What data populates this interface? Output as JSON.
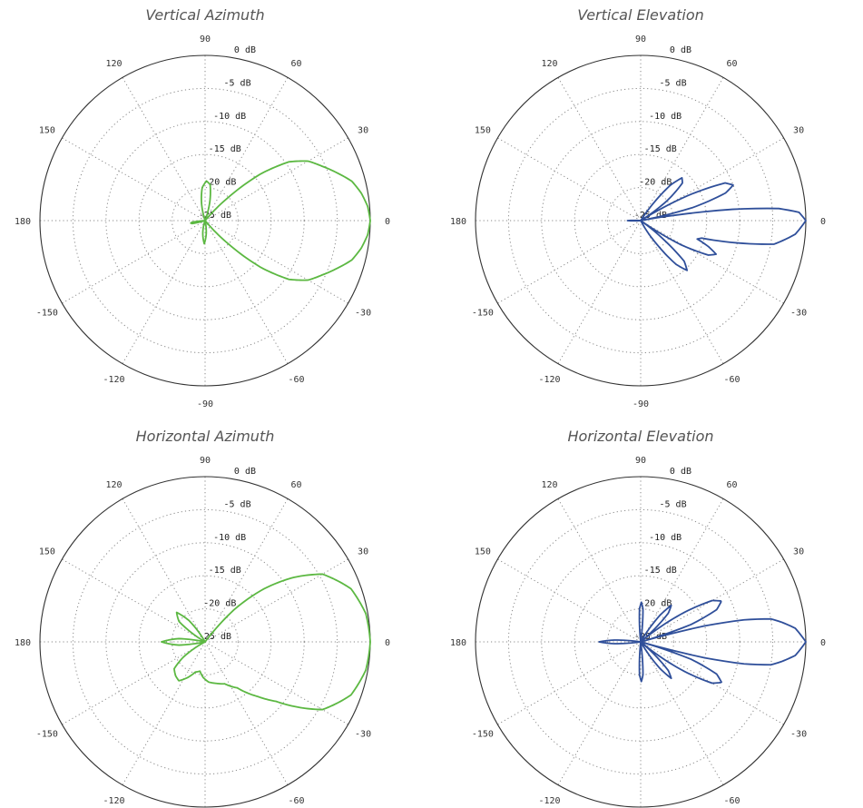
{
  "chart_data": [
    {
      "type": "polar-line",
      "title": "Vertical Azimuth",
      "angle_ticks": [
        "0",
        "30",
        "60",
        "90",
        "120",
        "150",
        "180",
        "-150",
        "-120",
        "-90",
        "-60",
        "-30"
      ],
      "radial_ticks": [
        "0 dB",
        "-5 dB",
        "-10 dB",
        "-15 dB",
        "-20 dB",
        "-25 dB"
      ],
      "rlim_db": [
        -25,
        0
      ],
      "grid": true,
      "color": "#5cb842",
      "points": [
        [
          -180,
          -25
        ],
        [
          -176,
          -25
        ],
        [
          -173,
          -23
        ],
        [
          -170,
          -22.8
        ],
        [
          -167,
          -23
        ],
        [
          -164,
          -25
        ],
        [
          -110,
          -25
        ],
        [
          -100,
          -23
        ],
        [
          -92,
          -21.5
        ],
        [
          -85,
          -23
        ],
        [
          -78,
          -25
        ],
        [
          -50,
          -25
        ],
        [
          -45,
          -20
        ],
        [
          -40,
          -14
        ],
        [
          -35,
          -9.5
        ],
        [
          -30,
          -7
        ],
        [
          -25,
          -5.5
        ],
        [
          -20,
          -3.8
        ],
        [
          -15,
          -2
        ],
        [
          -10,
          -1
        ],
        [
          -5,
          -0.3
        ],
        [
          0,
          0
        ],
        [
          5,
          -0.3
        ],
        [
          10,
          -1
        ],
        [
          15,
          -2
        ],
        [
          20,
          -3.8
        ],
        [
          25,
          -5.5
        ],
        [
          30,
          -7
        ],
        [
          35,
          -9.5
        ],
        [
          40,
          -14
        ],
        [
          45,
          -20
        ],
        [
          50,
          -25
        ],
        [
          70,
          -25
        ],
        [
          76,
          -22
        ],
        [
          82,
          -19.5
        ],
        [
          88,
          -19
        ],
        [
          95,
          -20
        ],
        [
          102,
          -22.5
        ],
        [
          108,
          -25
        ],
        [
          180,
          -25
        ]
      ]
    },
    {
      "type": "polar-line",
      "title": "Vertical Elevation",
      "angle_ticks": [
        "0",
        "30",
        "60",
        "90",
        "120",
        "150",
        "180",
        "-150",
        "-120",
        "-90",
        "-60",
        "-30"
      ],
      "radial_ticks": [
        "0 dB",
        "-5 dB",
        "-10 dB",
        "-15 dB",
        "-20 dB",
        "-25 dB"
      ],
      "rlim_db": [
        -25,
        0
      ],
      "grid": true,
      "color": "#2f4f9a",
      "points": [
        [
          -180,
          -23
        ],
        [
          -176,
          -25
        ],
        [
          -62,
          -25
        ],
        [
          -56,
          -21
        ],
        [
          -51,
          -16.5
        ],
        [
          -47,
          -14.7
        ],
        [
          -43,
          -16
        ],
        [
          -39,
          -21
        ],
        [
          -35,
          -25
        ],
        [
          -31,
          -18
        ],
        [
          -27,
          -13.5
        ],
        [
          -24,
          -12.5
        ],
        [
          -21,
          -14
        ],
        [
          -18,
          -16
        ],
        [
          -16,
          -15.4
        ],
        [
          -13,
          -10
        ],
        [
          -10,
          -4.5
        ],
        [
          -5,
          -1.5
        ],
        [
          0,
          0
        ],
        [
          3,
          -1
        ],
        [
          5,
          -4
        ],
        [
          7,
          -11
        ],
        [
          9,
          -20
        ],
        [
          11,
          -25
        ],
        [
          14,
          -17
        ],
        [
          18,
          -11.5
        ],
        [
          21,
          -10
        ],
        [
          24,
          -11
        ],
        [
          28,
          -17
        ],
        [
          32,
          -25
        ],
        [
          37,
          -20
        ],
        [
          42,
          -16.5
        ],
        [
          46,
          -16
        ],
        [
          50,
          -18
        ],
        [
          55,
          -23
        ],
        [
          58,
          -25
        ],
        [
          176,
          -25
        ],
        [
          180,
          -23
        ]
      ]
    },
    {
      "type": "polar-line",
      "title": "Horizontal Azimuth",
      "angle_ticks": [
        "0",
        "30",
        "60",
        "90",
        "120",
        "150",
        "180",
        "-150",
        "-120",
        "-90",
        "-60",
        "-30"
      ],
      "radial_ticks": [
        "0 dB",
        "-5 dB",
        "-10 dB",
        "-15 dB",
        "-20 dB",
        "-25 dB"
      ],
      "rlim_db": [
        -25,
        0
      ],
      "grid": true,
      "color": "#5cb842",
      "points": [
        [
          -180,
          -18.4
        ],
        [
          -173,
          -21
        ],
        [
          -168,
          -25
        ],
        [
          -152,
          -25
        ],
        [
          -145,
          -21
        ],
        [
          -139,
          -18.8
        ],
        [
          -131,
          -18.2
        ],
        [
          -124,
          -17.9
        ],
        [
          -116,
          -19
        ],
        [
          -108,
          -20.2
        ],
        [
          -100,
          -20.5
        ],
        [
          -93,
          -19.6
        ],
        [
          -85,
          -18.9
        ],
        [
          -75,
          -18.5
        ],
        [
          -65,
          -18
        ],
        [
          -55,
          -16.5
        ],
        [
          -46,
          -13.5
        ],
        [
          -40,
          -11
        ],
        [
          -36,
          -8.4
        ],
        [
          -30,
          -4.5
        ],
        [
          -20,
          -1.5
        ],
        [
          -10,
          -0.3
        ],
        [
          0,
          0
        ],
        [
          10,
          -0.3
        ],
        [
          20,
          -1.5
        ],
        [
          30,
          -4.5
        ],
        [
          36,
          -8.4
        ],
        [
          42,
          -13
        ],
        [
          48,
          -18.5
        ],
        [
          53,
          -25
        ],
        [
          120,
          -25
        ],
        [
          127,
          -21
        ],
        [
          134,
          -18.8
        ],
        [
          142,
          -20
        ],
        [
          150,
          -25
        ],
        [
          168,
          -25
        ],
        [
          173,
          -21
        ],
        [
          180,
          -18.4
        ]
      ]
    },
    {
      "type": "polar-line",
      "title": "Horizontal Elevation",
      "angle_ticks": [
        "0",
        "30",
        "60",
        "90",
        "120",
        "150",
        "180",
        "-150",
        "-120",
        "-90",
        "-60",
        "-30"
      ],
      "radial_ticks": [
        "0 dB",
        "-5 dB",
        "-10 dB",
        "-15 dB",
        "-20 dB",
        "-25 dB"
      ],
      "rlim_db": [
        -25,
        0
      ],
      "grid": true,
      "color": "#2f4f9a",
      "points": [
        [
          -180,
          -18.7
        ],
        [
          -176,
          -21
        ],
        [
          -172,
          -25
        ],
        [
          -96,
          -25
        ],
        [
          -92,
          -20
        ],
        [
          -89,
          -19
        ],
        [
          -86,
          -20
        ],
        [
          -82,
          -25
        ],
        [
          -60,
          -25
        ],
        [
          -54,
          -20
        ],
        [
          -50,
          -17.8
        ],
        [
          -46,
          -19
        ],
        [
          -40,
          -25
        ],
        [
          -34,
          -17
        ],
        [
          -30,
          -12.5
        ],
        [
          -26.6,
          -11.3
        ],
        [
          -23,
          -12.5
        ],
        [
          -19,
          -17
        ],
        [
          -16,
          -25
        ],
        [
          -14,
          -15
        ],
        [
          -12,
          -9
        ],
        [
          -10,
          -5
        ],
        [
          -8,
          -3.5
        ],
        [
          -5,
          -1.5
        ],
        [
          0,
          0
        ],
        [
          5,
          -1.5
        ],
        [
          8,
          -3.5
        ],
        [
          10,
          -5
        ],
        [
          12,
          -9
        ],
        [
          14,
          -15
        ],
        [
          16,
          -25
        ],
        [
          19,
          -17
        ],
        [
          23,
          -12.5
        ],
        [
          26.8,
          -11.3
        ],
        [
          30,
          -12.5
        ],
        [
          34,
          -17
        ],
        [
          40,
          -25
        ],
        [
          46,
          -19
        ],
        [
          50,
          -17.8
        ],
        [
          54,
          -20
        ],
        [
          60,
          -25
        ],
        [
          82,
          -25
        ],
        [
          86,
          -20
        ],
        [
          89,
          -19
        ],
        [
          92,
          -20
        ],
        [
          96,
          -25
        ],
        [
          172,
          -25
        ],
        [
          176,
          -21
        ],
        [
          180,
          -18.7
        ]
      ]
    }
  ]
}
